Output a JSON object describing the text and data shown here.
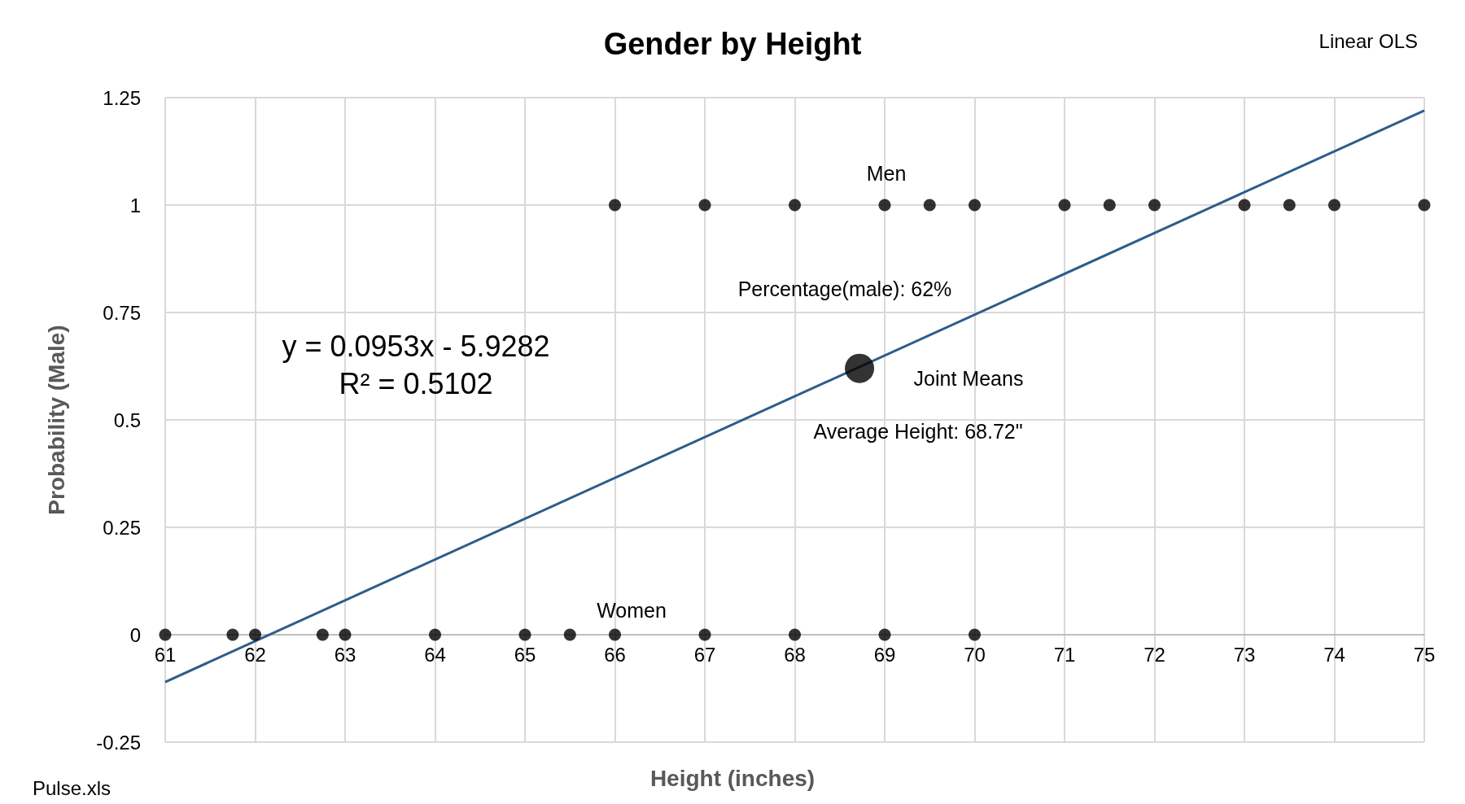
{
  "chart_data": {
    "type": "scatter",
    "title": "Gender by Height",
    "xlabel": "Height (inches)",
    "ylabel": "Probability (Male)",
    "xlim": [
      61,
      75
    ],
    "xticks": [
      61,
      62,
      63,
      64,
      65,
      66,
      67,
      68,
      69,
      70,
      71,
      72,
      73,
      74,
      75
    ],
    "ylim": [
      -0.25,
      1.25
    ],
    "yticks": [
      -0.25,
      0,
      0.25,
      0.5,
      0.75,
      1,
      1.25
    ],
    "grid": true,
    "marker": "circle",
    "series": [
      {
        "color": "#000000",
        "x": [
          66,
          67,
          68,
          69,
          69.5,
          70,
          71,
          71.5,
          72,
          73,
          73.5,
          74,
          75
        ],
        "values": [
          1,
          1,
          1,
          1,
          1,
          1,
          1,
          1,
          1,
          1,
          1,
          1,
          1
        ]
      },
      {
        "color": "#000000",
        "x": [
          61,
          61.75,
          62,
          62.75,
          63,
          64,
          65,
          65.5,
          66,
          67,
          68,
          69,
          70
        ],
        "values": [
          0,
          0,
          0,
          0,
          0,
          0,
          0,
          0,
          0,
          0,
          0,
          0,
          0
        ]
      },
      {
        "type": "bubble",
        "color": "#000000",
        "x": [
          68.72
        ],
        "values": [
          0.62
        ],
        "sizes": [
          1
        ]
      },
      {
        "type": "line",
        "marker": "none",
        "color": "#2e5c8a",
        "x": [
          61,
          75
        ],
        "values": [
          -0.11,
          1.22
        ]
      }
    ],
    "annotations": [
      "Linear OLS",
      "Pulse.xls",
      "Men",
      "Women",
      "y = 0.0953x - 5.9282\nR² = 0.5102",
      "Percentage(male): 62%",
      "Joint Means",
      "Average Height: 68.72\""
    ]
  }
}
